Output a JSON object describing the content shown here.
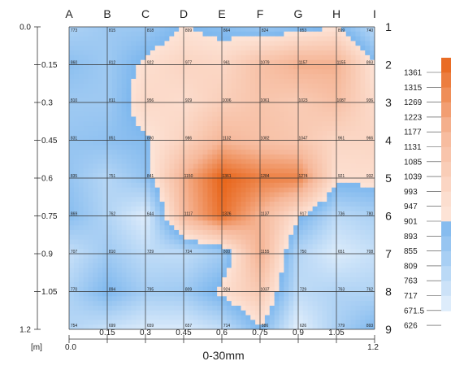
{
  "chart_data": {
    "type": "heatmap",
    "title": "",
    "xlabel": "0-30mm",
    "unit_label": "[m]",
    "columns": [
      "A",
      "B",
      "C",
      "D",
      "E",
      "F",
      "G",
      "H",
      "I"
    ],
    "rows": [
      "1",
      "2",
      "3",
      "4",
      "5",
      "6",
      "7",
      "8",
      "9"
    ],
    "x_ticks": [
      "0.0",
      "0.15",
      "0.3",
      "0.45",
      "0.6",
      "0.75",
      "0.9",
      "1.05",
      "1.2"
    ],
    "y_ticks": [
      "0.0",
      "0.15",
      "0.3",
      "0.45",
      "0.6",
      "0.75",
      "0.9",
      "1.05",
      "1.2"
    ],
    "xlim": [
      0,
      1.2
    ],
    "ylim": [
      0,
      1.2
    ],
    "values": [
      [
        773,
        815,
        818,
        899,
        864,
        824,
        853,
        899,
        740
      ],
      [
        860,
        812,
        922,
        977,
        961,
        1079,
        1157,
        1155,
        893
      ],
      [
        810,
        811,
        956,
        929,
        1006,
        1061,
        1023,
        1087,
        936
      ],
      [
        831,
        851,
        880,
        986,
        1132,
        1082,
        1047,
        961,
        966
      ],
      [
        835,
        751,
        841,
        1150,
        1361,
        1284,
        1274,
        921,
        932
      ],
      [
        869,
        762,
        644,
        1117,
        1326,
        1137,
        917,
        736,
        780
      ],
      [
        707,
        810,
        729,
        724,
        800,
        1155,
        750,
        651,
        708
      ],
      [
        770,
        894,
        795,
        809,
        924,
        1037,
        729,
        763,
        762
      ],
      [
        754,
        699,
        659,
        657,
        714,
        886,
        626,
        779,
        893
      ]
    ],
    "legend_levels": [
      "1361",
      "1315",
      "1269",
      "1223",
      "1177",
      "1131",
      "1085",
      "1039",
      "993",
      "947",
      "901",
      "893",
      "855",
      "809",
      "763",
      "717",
      "671.5",
      "626"
    ],
    "colors": {
      "high": "#e86418",
      "mid_high": "#f6b89a",
      "low_warm": "#fde3d6",
      "cool_high": "#7fb8ee",
      "cool_low": "#e6f1fc",
      "grid": "#333333"
    }
  }
}
